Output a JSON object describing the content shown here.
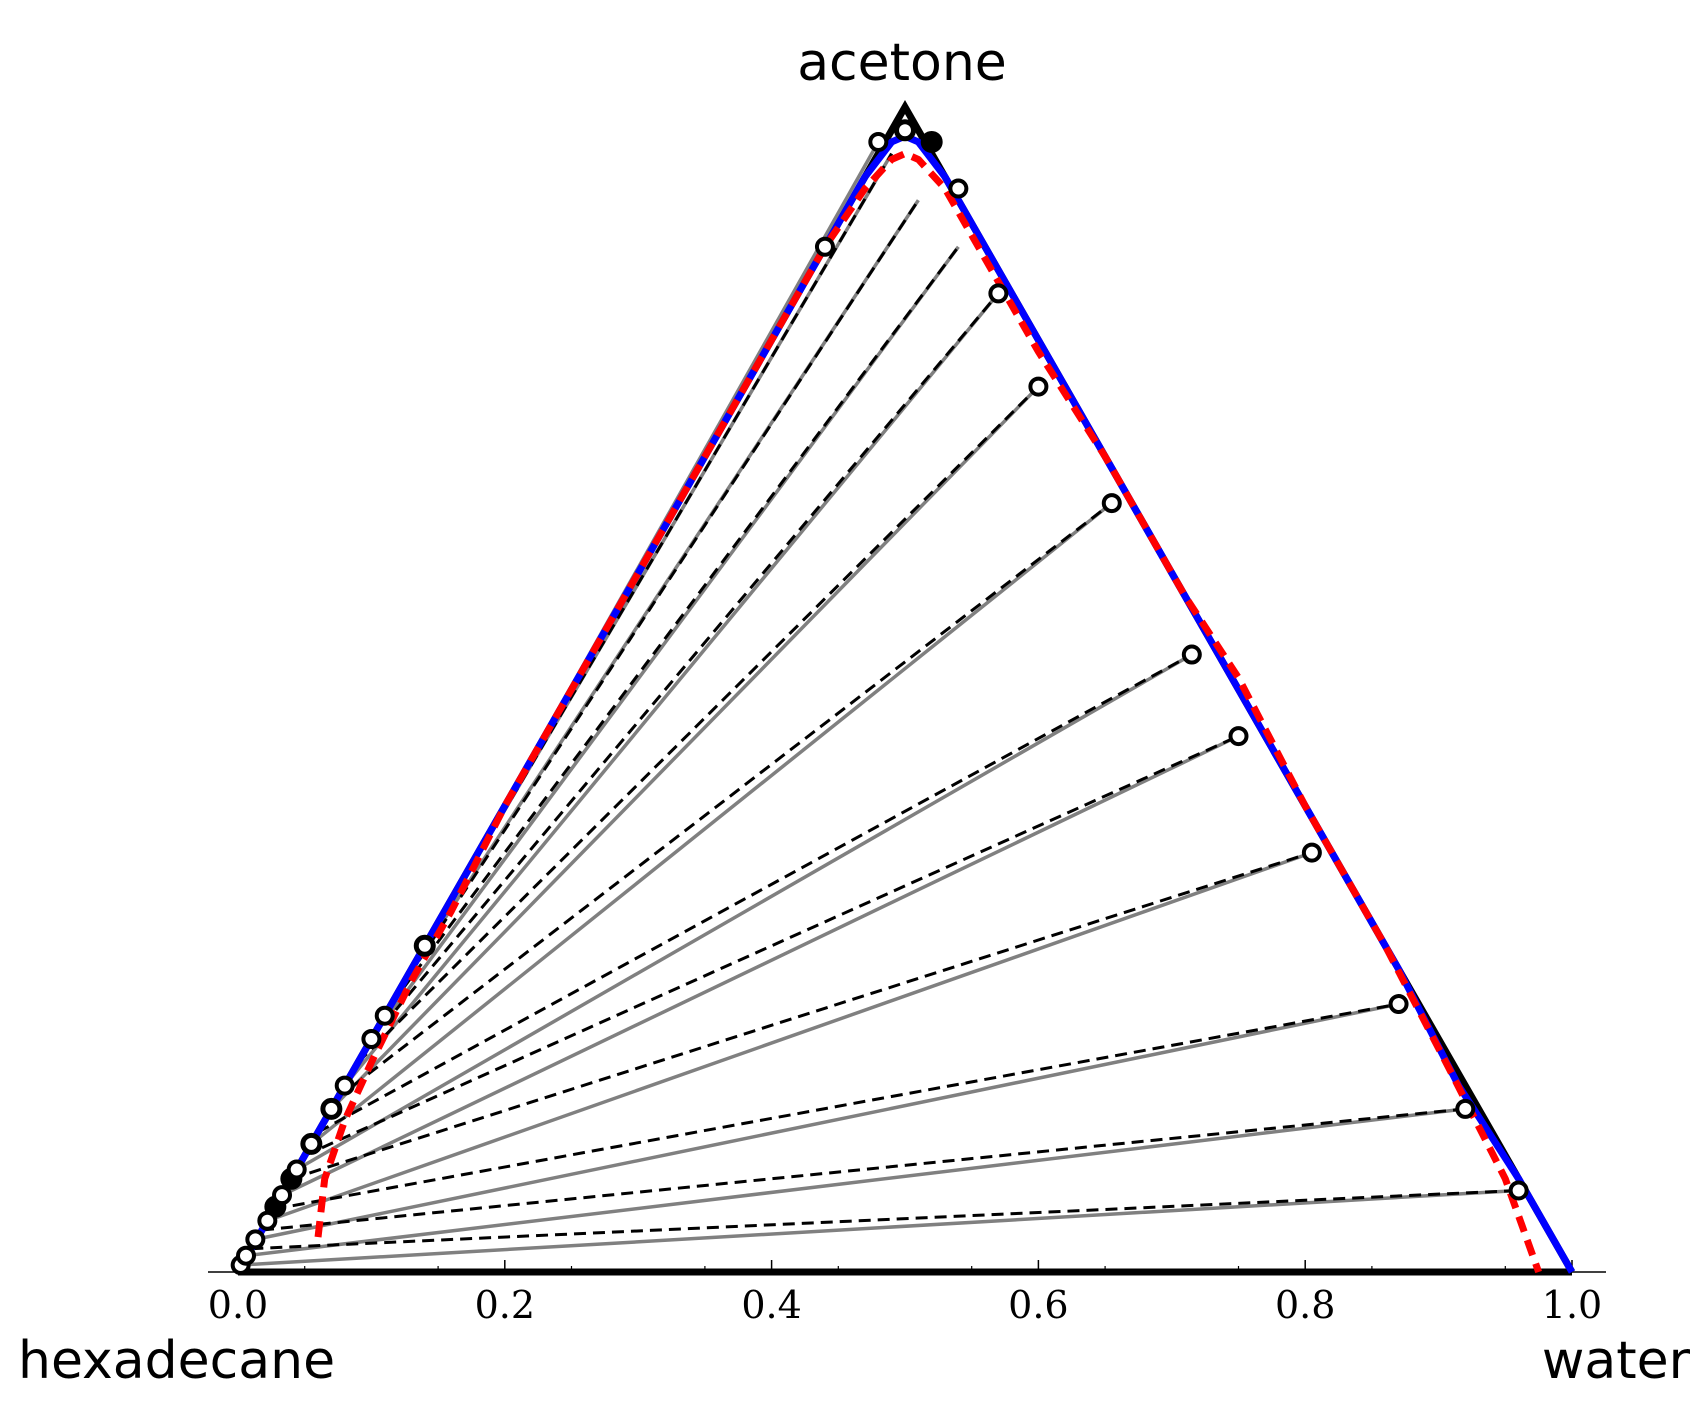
{
  "chart_data": {
    "type": "ternary",
    "vertex_labels": {
      "top": "acetone",
      "left": "hexadecane",
      "right": "water"
    },
    "axis": {
      "range": [
        0.0,
        1.0
      ],
      "ticks": [
        0.0,
        0.2,
        0.4,
        0.6,
        0.8,
        1.0
      ],
      "tick_labels": [
        "0.0",
        "0.2",
        "0.4",
        "0.6",
        "0.8",
        "1.0"
      ]
    },
    "colors": {
      "triangle": "#000000",
      "binodal_solid": "#0000ff",
      "binodal_dashed": "#ff0000",
      "tieline_solid": "#808080",
      "tieline_dashed": "#000000",
      "marker_open_fill": "#ffffff",
      "marker_filled": "#000000"
    },
    "series": [
      {
        "style": "solid-blue-curve",
        "x": [
          0.0,
          0.015,
          0.03,
          0.05,
          0.07,
          0.09,
          0.11,
          0.13,
          0.15,
          0.2,
          0.25,
          0.3,
          0.35,
          0.4,
          0.44,
          0.47,
          0.49,
          0.5,
          0.51,
          0.53,
          0.57,
          0.6,
          0.655,
          0.715,
          0.75,
          0.805,
          0.87,
          0.915,
          0.96,
          1.0
        ],
        "y": [
          0.0,
          0.03,
          0.06,
          0.1,
          0.14,
          0.18,
          0.22,
          0.26,
          0.3,
          0.4,
          0.5,
          0.6,
          0.7,
          0.8,
          0.88,
          0.94,
          0.97,
          0.975,
          0.97,
          0.94,
          0.86,
          0.8,
          0.69,
          0.57,
          0.5,
          0.39,
          0.26,
          0.16,
          0.08,
          0.0
        ]
      },
      {
        "style": "dashed-red-curve",
        "x": [
          0.06,
          0.065,
          0.08,
          0.1,
          0.13,
          0.16,
          0.2,
          0.25,
          0.3,
          0.35,
          0.4,
          0.44,
          0.47,
          0.49,
          0.5,
          0.51,
          0.53,
          0.57,
          0.6,
          0.65,
          0.71,
          0.75,
          0.8,
          0.86,
          0.91,
          0.95,
          0.975
        ],
        "y": [
          0.03,
          0.08,
          0.13,
          0.18,
          0.25,
          0.31,
          0.4,
          0.5,
          0.6,
          0.7,
          0.8,
          0.88,
          0.93,
          0.955,
          0.96,
          0.955,
          0.93,
          0.85,
          0.79,
          0.7,
          0.58,
          0.51,
          0.4,
          0.28,
          0.17,
          0.08,
          0.0
        ]
      }
    ],
    "tie_lines_solid": [
      [
        [
          0.002,
          0.006
        ],
        [
          0.96,
          0.07
        ]
      ],
      [
        [
          0.006,
          0.014
        ],
        [
          0.92,
          0.14
        ]
      ],
      [
        [
          0.013,
          0.028
        ],
        [
          0.87,
          0.23
        ]
      ],
      [
        [
          0.022,
          0.044
        ],
        [
          0.805,
          0.36
        ]
      ],
      [
        [
          0.033,
          0.066
        ],
        [
          0.75,
          0.46
        ]
      ],
      [
        [
          0.044,
          0.088
        ],
        [
          0.715,
          0.53
        ]
      ],
      [
        [
          0.055,
          0.11
        ],
        [
          0.655,
          0.66
        ]
      ],
      [
        [
          0.07,
          0.14
        ],
        [
          0.6,
          0.76
        ]
      ],
      [
        [
          0.08,
          0.16
        ],
        [
          0.57,
          0.84
        ]
      ],
      [
        [
          0.1,
          0.2
        ],
        [
          0.54,
          0.88
        ]
      ],
      [
        [
          0.13,
          0.26
        ],
        [
          0.51,
          0.92
        ]
      ],
      [
        [
          0.14,
          0.28
        ],
        [
          0.49,
          0.96
        ]
      ],
      [
        [
          0.15,
          0.3
        ],
        [
          0.48,
          0.97
        ]
      ]
    ],
    "tie_lines_dashed": [
      [
        [
          0.01,
          0.02
        ],
        [
          0.96,
          0.07
        ]
      ],
      [
        [
          0.018,
          0.036
        ],
        [
          0.92,
          0.14
        ]
      ],
      [
        [
          0.027,
          0.054
        ],
        [
          0.87,
          0.23
        ]
      ],
      [
        [
          0.04,
          0.08
        ],
        [
          0.805,
          0.36
        ]
      ],
      [
        [
          0.05,
          0.1
        ],
        [
          0.75,
          0.46
        ]
      ],
      [
        [
          0.06,
          0.12
        ],
        [
          0.715,
          0.53
        ]
      ],
      [
        [
          0.075,
          0.15
        ],
        [
          0.655,
          0.66
        ]
      ],
      [
        [
          0.09,
          0.18
        ],
        [
          0.6,
          0.76
        ]
      ],
      [
        [
          0.1,
          0.2
        ],
        [
          0.57,
          0.84
        ]
      ],
      [
        [
          0.115,
          0.23
        ],
        [
          0.54,
          0.88
        ]
      ],
      [
        [
          0.12,
          0.24
        ],
        [
          0.51,
          0.92
        ]
      ],
      [
        [
          0.14,
          0.28
        ],
        [
          0.49,
          0.96
        ]
      ]
    ],
    "markers_open": [
      [
        0.002,
        0.006
      ],
      [
        0.006,
        0.014
      ],
      [
        0.013,
        0.028
      ],
      [
        0.022,
        0.044
      ],
      [
        0.033,
        0.066
      ],
      [
        0.044,
        0.088
      ],
      [
        0.055,
        0.11
      ],
      [
        0.07,
        0.14
      ],
      [
        0.08,
        0.16
      ],
      [
        0.1,
        0.2
      ],
      [
        0.11,
        0.22
      ],
      [
        0.14,
        0.28
      ],
      [
        0.44,
        0.88
      ],
      [
        0.48,
        0.97
      ],
      [
        0.5,
        0.98
      ],
      [
        0.54,
        0.93
      ],
      [
        0.57,
        0.84
      ],
      [
        0.6,
        0.76
      ],
      [
        0.655,
        0.66
      ],
      [
        0.715,
        0.53
      ],
      [
        0.75,
        0.46
      ],
      [
        0.805,
        0.36
      ],
      [
        0.87,
        0.23
      ],
      [
        0.92,
        0.14
      ],
      [
        0.96,
        0.07
      ]
    ],
    "markers_filled": [
      [
        0.14,
        0.28
      ],
      [
        0.07,
        0.14
      ],
      [
        0.055,
        0.11
      ],
      [
        0.04,
        0.08
      ],
      [
        0.028,
        0.056
      ],
      [
        0.5,
        0.98
      ],
      [
        0.52,
        0.97
      ]
    ]
  }
}
